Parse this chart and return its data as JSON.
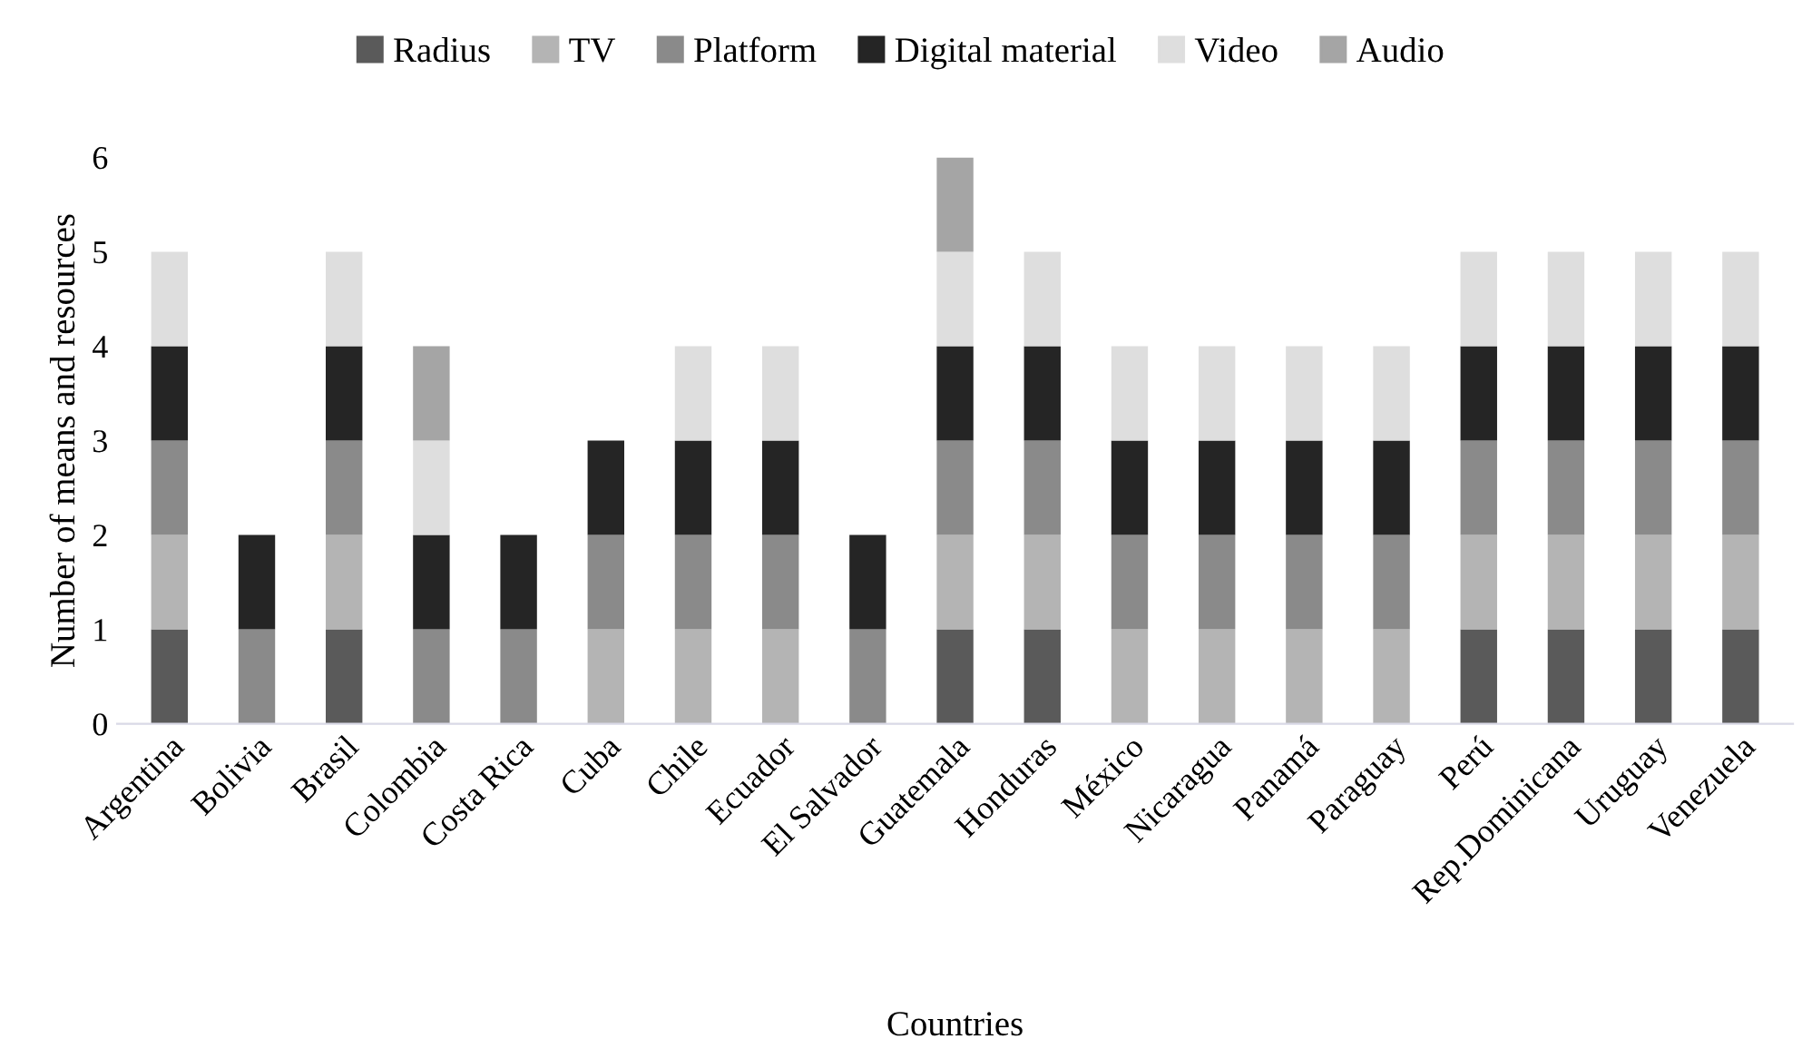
{
  "chart_data": {
    "type": "bar",
    "stacked": true,
    "xlabel": "Countries",
    "ylabel": "Number of means and resources",
    "categories": [
      "Argentina",
      "Bolivia",
      "Brasil",
      "Colombia",
      "Costa Rica",
      "Cuba",
      "Chile",
      "Ecuador",
      "El Salvador",
      "Guatemala",
      "Honduras",
      "México",
      "Nicaragua",
      "Panamá",
      "Paraguay",
      "Perú",
      "Rep.Dominicana",
      "Uruguay",
      "Venezuela"
    ],
    "series": [
      {
        "name": "Radius",
        "color": "#5a5a5a",
        "values": [
          1,
          0,
          1,
          0,
          0,
          0,
          0,
          0,
          0,
          1,
          1,
          0,
          0,
          0,
          0,
          1,
          1,
          1,
          1
        ]
      },
      {
        "name": "TV",
        "color": "#b4b4b4",
        "values": [
          1,
          0,
          1,
          0,
          0,
          1,
          1,
          1,
          0,
          1,
          1,
          1,
          1,
          1,
          1,
          1,
          1,
          1,
          1
        ]
      },
      {
        "name": "Platform",
        "color": "#8a8a8a",
        "values": [
          1,
          1,
          1,
          1,
          1,
          1,
          1,
          1,
          1,
          1,
          1,
          1,
          1,
          1,
          1,
          1,
          1,
          1,
          1
        ]
      },
      {
        "name": "Digital material",
        "color": "#252525",
        "values": [
          1,
          1,
          1,
          1,
          1,
          1,
          1,
          1,
          1,
          1,
          1,
          1,
          1,
          1,
          1,
          1,
          1,
          1,
          1
        ]
      },
      {
        "name": "Video",
        "color": "#dedede",
        "values": [
          1,
          0,
          1,
          1,
          0,
          0,
          1,
          1,
          0,
          1,
          1,
          1,
          1,
          1,
          1,
          1,
          1,
          1,
          1
        ]
      },
      {
        "name": "Audio",
        "color": "#a5a5a5",
        "values": [
          0,
          0,
          0,
          1,
          0,
          0,
          0,
          0,
          0,
          1,
          0,
          0,
          0,
          0,
          0,
          0,
          0,
          0,
          0
        ]
      }
    ],
    "ylim": [
      0,
      6
    ],
    "yticks": [
      0,
      1,
      2,
      3,
      4,
      5,
      6
    ],
    "grid": false,
    "legend": "top"
  }
}
